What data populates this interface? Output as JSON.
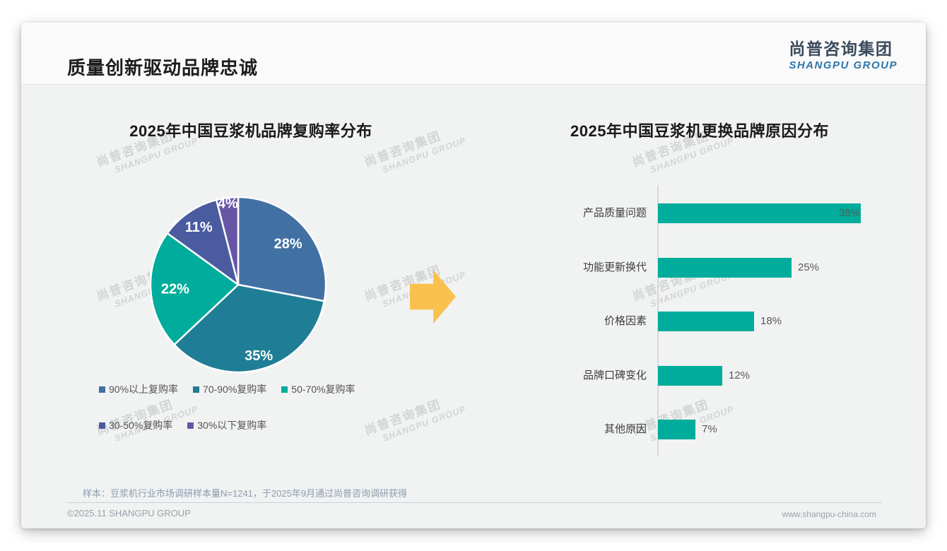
{
  "header": {
    "title": "质量创新驱动品牌忠诚",
    "logo": {
      "chinese": "尚普咨询集团",
      "english": "SHANGPU GROUP"
    }
  },
  "watermark": {
    "line1": "尚普咨询集团",
    "line2": "SHANGPU GROUP"
  },
  "chart_data": [
    {
      "type": "pie",
      "title": "2025年中国豆浆机品牌复购率分布",
      "labels": [
        "90%以上复购率",
        "70-90%复购率",
        "50-70%复购率",
        "30-50%复购率",
        "30%以下复购率"
      ],
      "values": [
        28,
        35,
        22,
        11,
        4
      ],
      "value_labels": [
        "28%",
        "35%",
        "22%",
        "11%",
        "4%"
      ],
      "unit": "%",
      "colors": [
        "#4170a3",
        "#1f7e96",
        "#00ac9b",
        "#4a5ba0",
        "#6955a6"
      ],
      "start_angle_deg": 0,
      "direction": "clockwise",
      "legend_position": "bottom"
    },
    {
      "type": "bar",
      "title": "2025年中国豆浆机更换品牌原因分布",
      "orientation": "horizontal",
      "categories": [
        "产品质量问题",
        "功能更新换代",
        "价格因素",
        "品牌口碑变化",
        "其他原因"
      ],
      "values": [
        38,
        25,
        18,
        12,
        7
      ],
      "value_labels": [
        "38%",
        "25%",
        "18%",
        "12%",
        "7%"
      ],
      "unit": "%",
      "bar_color": "#00ac9b",
      "xlim": [
        0,
        40
      ],
      "grid": false
    }
  ],
  "arrow": {
    "color": "#f9c14d",
    "direction": "right"
  },
  "footnote": "样本：豆浆机行业市场调研样本量N=1241，于2025年9月通过尚普咨询调研获得",
  "footer": {
    "copyright": "©2025.11 SHANGPU GROUP",
    "website": "www.shangpu-china.com"
  }
}
